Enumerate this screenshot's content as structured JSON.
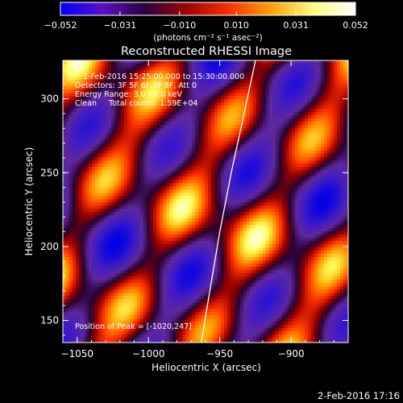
{
  "chart_data": {
    "type": "heatmap",
    "title": "Reconstructed RHESSI Image",
    "xlabel": "Heliocentric X (arcsec)",
    "ylabel": "Heliocentric Y (arcsec)",
    "xlim": [
      -1060,
      -860
    ],
    "ylim": [
      135,
      326
    ],
    "x_ticks": [
      -1050,
      -1000,
      -950,
      -900
    ],
    "x_tick_labels": [
      "−1050",
      "−1000",
      "−950",
      "−900"
    ],
    "y_ticks": [
      150,
      200,
      250,
      300
    ],
    "y_tick_labels": [
      "150",
      "200",
      "250",
      "300"
    ],
    "colorbar": {
      "range": [
        -0.052,
        0.052
      ],
      "ticks": [
        -0.052,
        -0.031,
        -0.01,
        0.01,
        0.031,
        0.052
      ],
      "tick_labels": [
        "−0.052",
        "−0.031",
        "−0.010",
        "0.010",
        "0.031",
        "0.052"
      ],
      "label": "(photons cm⁻² s⁻¹ asec⁻²)",
      "colors": [
        "#0000ff",
        "#5a10c8",
        "#2a0040",
        "#a00000",
        "#ff3000",
        "#ffa000",
        "#ffff80",
        "#ffffff"
      ]
    },
    "annotations": [
      "1-Feb-2016 15:25:00.000 to 15:30:00.000",
      "Detectors: 3F 5F 6F 7F 8F, Att 0",
      "Energy Range: 3.0 - 6.0 keV",
      "Clean     Total counts: 1.59E+04"
    ],
    "peak_label": "Position of Peak = [-1020,247]",
    "peak": [
      -1020,
      247
    ],
    "limb_points": [
      [
        -963,
        135
      ],
      [
        -957,
        170
      ],
      [
        -950,
        210
      ],
      [
        -942,
        250
      ],
      [
        -933,
        290
      ],
      [
        -925,
        326
      ]
    ],
    "footer_date": "2-Feb-2016 17:16"
  }
}
